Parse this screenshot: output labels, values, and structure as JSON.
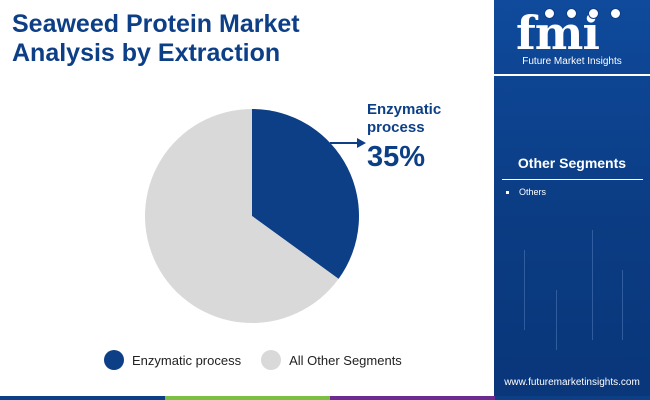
{
  "title": {
    "line1": "Seaweed Protein Market",
    "line2": "Analysis by Extraction"
  },
  "chart_data": {
    "type": "pie",
    "categories": [
      "Enzymatic process",
      "All Other Segments"
    ],
    "values": [
      35,
      65
    ],
    "colors": [
      "#0d3f86",
      "#d9d9d9"
    ],
    "legend_position": "bottom",
    "annotation": {
      "label_line1": "Enzymatic",
      "label_line2": "process",
      "value_text": "35%"
    }
  },
  "sidebar": {
    "logo_letters": "fmi",
    "logo_tagline": "Future Market Insights",
    "segments_title": "Other Segments",
    "segments": [
      "Others"
    ],
    "website": "www.futuremarketinsights.com"
  },
  "colors": {
    "brand_navy": "#0d3f86",
    "panel_blue": "#0b3c83",
    "footer_bar": [
      "#0d3f86",
      "#7bc043",
      "#6a2c91",
      "#0d3f86"
    ]
  }
}
